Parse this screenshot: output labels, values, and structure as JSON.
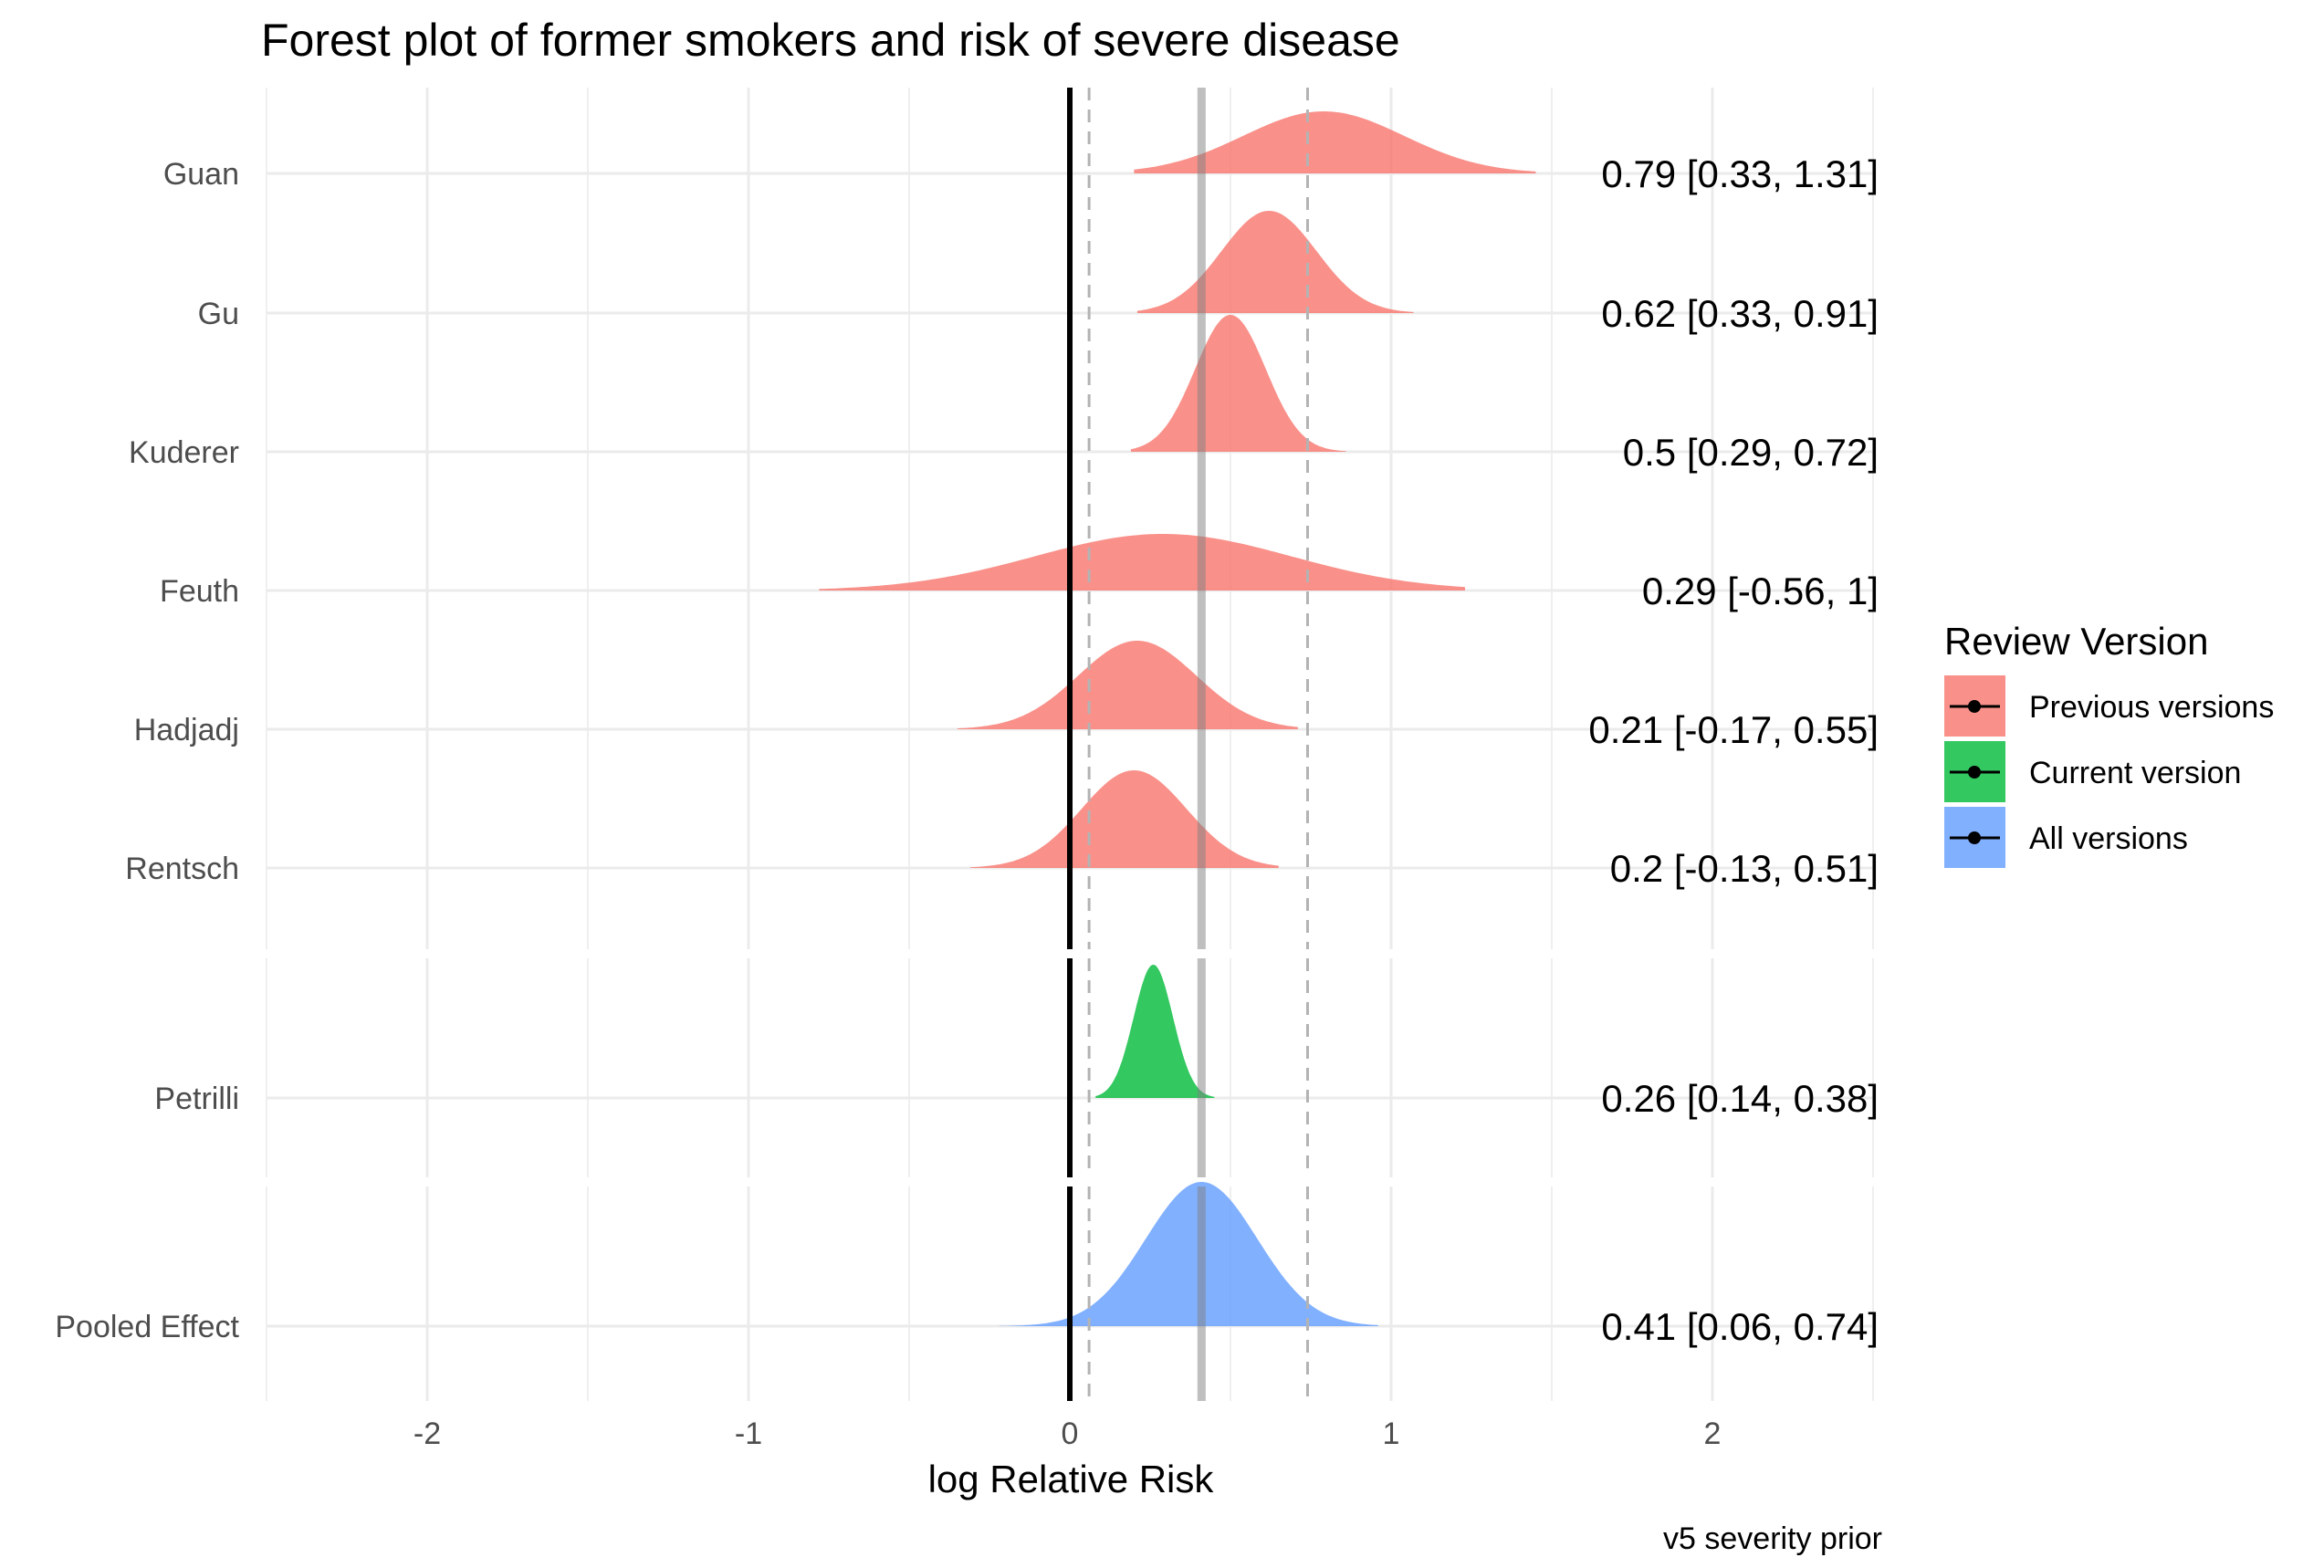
{
  "chart_data": {
    "type": "forest-plot (density ridges)",
    "title": "Forest plot of former smokers and risk of severe disease",
    "xlabel": "log Relative Risk",
    "caption": "v5 severity prior",
    "xlim": [
      -2.5,
      2.5
    ],
    "xticks": [
      -2,
      -1,
      0,
      1,
      2
    ],
    "reference_line": 0,
    "pooled_mean": 0.41,
    "pooled_interval": [
      0.06,
      0.74
    ],
    "legend": {
      "title": "Review Version",
      "position": "right",
      "entries": [
        {
          "label": "Previous versions",
          "color": "#F8766D"
        },
        {
          "label": "Current version",
          "color": "#00BA38"
        },
        {
          "label": "All versions",
          "color": "#619CFF"
        }
      ]
    },
    "studies": [
      {
        "name": "Guan",
        "group": "Previous versions",
        "mean": 0.79,
        "lower": 0.33,
        "upper": 1.31,
        "label": "0.79 [0.33, 1.31]",
        "range": [
          0.2,
          1.45
        ]
      },
      {
        "name": "Gu",
        "group": "Previous versions",
        "mean": 0.62,
        "lower": 0.33,
        "upper": 0.91,
        "label": "0.62 [0.33, 0.91]",
        "range": [
          0.21,
          1.07
        ]
      },
      {
        "name": "Kuderer",
        "group": "Previous versions",
        "mean": 0.5,
        "lower": 0.29,
        "upper": 0.72,
        "label": "0.5 [0.29, 0.72]",
        "range": [
          0.19,
          0.86
        ]
      },
      {
        "name": "Feuth",
        "group": "Previous versions",
        "mean": 0.29,
        "lower": -0.56,
        "upper": 1,
        "label": "0.29 [-0.56, 1]",
        "range": [
          -0.78,
          1.23
        ]
      },
      {
        "name": "Hadjadj",
        "group": "Previous versions",
        "mean": 0.21,
        "lower": -0.17,
        "upper": 0.55,
        "label": "0.21 [-0.17, 0.55]",
        "range": [
          -0.35,
          0.71
        ]
      },
      {
        "name": "Rentsch",
        "group": "Previous versions",
        "mean": 0.2,
        "lower": -0.13,
        "upper": 0.51,
        "label": "0.2 [-0.13, 0.51]",
        "range": [
          -0.31,
          0.65
        ]
      },
      {
        "name": "Petrilli",
        "group": "Current version",
        "mean": 0.26,
        "lower": 0.14,
        "upper": 0.38,
        "label": "0.26 [0.14, 0.38]",
        "range": [
          0.08,
          0.45
        ]
      },
      {
        "name": "Pooled Effect",
        "group": "All versions",
        "mean": 0.41,
        "lower": 0.06,
        "upper": 0.74,
        "label": "0.41 [0.06, 0.74]",
        "range": [
          -0.22,
          0.96
        ]
      }
    ]
  }
}
